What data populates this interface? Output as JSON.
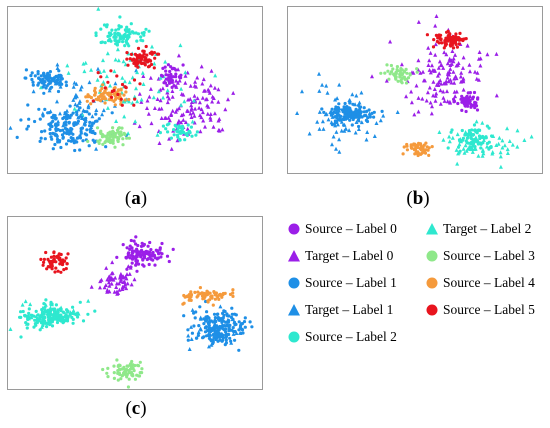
{
  "colors": {
    "label0": "#9b1fe8",
    "label1": "#1e8fe6",
    "label2": "#2ee8cf",
    "label3": "#8fe88a",
    "label4": "#f59a3c",
    "label5": "#e8141e"
  },
  "captions": {
    "a": "a",
    "b": "b",
    "c": "c"
  },
  "legend": [
    {
      "text": "Source – Label 0",
      "shape": "circle",
      "color_key": "label0"
    },
    {
      "text": "Target – Label 0",
      "shape": "triangle",
      "color_key": "label0"
    },
    {
      "text": "Source – Label 1",
      "shape": "circle",
      "color_key": "label1"
    },
    {
      "text": "Target – Label 1",
      "shape": "triangle",
      "color_key": "label1"
    },
    {
      "text": "Source – Label 2",
      "shape": "circle",
      "color_key": "label2"
    },
    {
      "text": "Target – Label 2",
      "shape": "triangle",
      "color_key": "label2"
    },
    {
      "text": "Source – Label 3",
      "shape": "circle",
      "color_key": "label3"
    },
    {
      "text": "Source – Label 4",
      "shape": "circle",
      "color_key": "label4"
    },
    {
      "text": "Source – Label 5",
      "shape": "circle",
      "color_key": "label5"
    }
  ],
  "chart_data": [
    {
      "panel": "a",
      "type": "scatter",
      "xlim": [
        0,
        100
      ],
      "ylim": [
        0,
        100
      ],
      "grid": false,
      "clusters": [
        {
          "label": "label0",
          "domain": "target",
          "center": [
            70,
            58
          ],
          "spread": [
            16,
            20
          ],
          "count": 140
        },
        {
          "label": "label0",
          "domain": "source",
          "center": [
            64,
            42
          ],
          "spread": [
            4,
            5
          ],
          "count": 40
        },
        {
          "label": "label1",
          "domain": "source",
          "center": [
            16,
            43
          ],
          "spread": [
            8,
            5
          ],
          "count": 90
        },
        {
          "label": "label1",
          "domain": "source",
          "center": [
            24,
            73
          ],
          "spread": [
            13,
            10
          ],
          "count": 170
        },
        {
          "label": "label1",
          "domain": "target",
          "center": [
            28,
            60
          ],
          "spread": [
            15,
            20
          ],
          "count": 60
        },
        {
          "label": "label2",
          "domain": "source",
          "center": [
            45,
            17
          ],
          "spread": [
            9,
            7
          ],
          "count": 90
        },
        {
          "label": "label2",
          "domain": "source",
          "center": [
            68,
            75
          ],
          "spread": [
            5,
            5
          ],
          "count": 45
        },
        {
          "label": "label2",
          "domain": "target",
          "center": [
            48,
            45
          ],
          "spread": [
            22,
            25
          ],
          "count": 80
        },
        {
          "label": "label3",
          "domain": "source",
          "center": [
            40,
            78
          ],
          "spread": [
            6,
            5
          ],
          "count": 70
        },
        {
          "label": "label4",
          "domain": "source",
          "center": [
            39,
            53
          ],
          "spread": [
            7,
            5
          ],
          "count": 80
        },
        {
          "label": "label5",
          "domain": "source",
          "center": [
            53,
            31
          ],
          "spread": [
            5,
            5
          ],
          "count": 70
        },
        {
          "label": "label5",
          "domain": "source",
          "center": [
            44,
            50
          ],
          "spread": [
            10,
            10
          ],
          "count": 20
        }
      ]
    },
    {
      "panel": "b",
      "type": "scatter",
      "xlim": [
        0,
        100
      ],
      "ylim": [
        0,
        100
      ],
      "grid": false,
      "clusters": [
        {
          "label": "label0",
          "domain": "target",
          "center": [
            62,
            40
          ],
          "spread": [
            14,
            20
          ],
          "count": 140
        },
        {
          "label": "label0",
          "domain": "source",
          "center": [
            71,
            57
          ],
          "spread": [
            4,
            4
          ],
          "count": 60
        },
        {
          "label": "label1",
          "domain": "source",
          "center": [
            24,
            64
          ],
          "spread": [
            8,
            5
          ],
          "count": 130
        },
        {
          "label": "label1",
          "domain": "target",
          "center": [
            22,
            66
          ],
          "spread": [
            14,
            16
          ],
          "count": 70
        },
        {
          "label": "label2",
          "domain": "source",
          "center": [
            73,
            80
          ],
          "spread": [
            6,
            7
          ],
          "count": 80
        },
        {
          "label": "label2",
          "domain": "target",
          "center": [
            75,
            82
          ],
          "spread": [
            14,
            10
          ],
          "count": 60
        },
        {
          "label": "label3",
          "domain": "source",
          "center": [
            43,
            40
          ],
          "spread": [
            5,
            5
          ],
          "count": 50
        },
        {
          "label": "label4",
          "domain": "source",
          "center": [
            51,
            85
          ],
          "spread": [
            4,
            4
          ],
          "count": 50
        },
        {
          "label": "label5",
          "domain": "source",
          "center": [
            64,
            20
          ],
          "spread": [
            5,
            4
          ],
          "count": 80
        }
      ]
    },
    {
      "panel": "c",
      "type": "scatter",
      "xlim": [
        0,
        100
      ],
      "ylim": [
        0,
        100
      ],
      "grid": false,
      "clusters": [
        {
          "label": "label0",
          "domain": "source",
          "center": [
            53,
            22
          ],
          "spread": [
            8,
            7
          ],
          "count": 110
        },
        {
          "label": "label0",
          "domain": "target",
          "center": [
            43,
            38
          ],
          "spread": [
            7,
            9
          ],
          "count": 60
        },
        {
          "label": "label1",
          "domain": "source",
          "center": [
            83,
            64
          ],
          "spread": [
            9,
            9
          ],
          "count": 170
        },
        {
          "label": "label1",
          "domain": "target",
          "center": [
            82,
            66
          ],
          "spread": [
            10,
            10
          ],
          "count": 40
        },
        {
          "label": "label2",
          "domain": "source",
          "center": [
            16,
            58
          ],
          "spread": [
            10,
            6
          ],
          "count": 150
        },
        {
          "label": "label2",
          "domain": "target",
          "center": [
            16,
            57
          ],
          "spread": [
            10,
            7
          ],
          "count": 40
        },
        {
          "label": "label3",
          "domain": "source",
          "center": [
            46,
            89
          ],
          "spread": [
            7,
            5
          ],
          "count": 70
        },
        {
          "label": "label4",
          "domain": "source",
          "center": [
            78,
            46
          ],
          "spread": [
            8,
            4
          ],
          "count": 70
        },
        {
          "label": "label5",
          "domain": "source",
          "center": [
            19,
            26
          ],
          "spread": [
            5,
            5
          ],
          "count": 60
        }
      ]
    }
  ]
}
